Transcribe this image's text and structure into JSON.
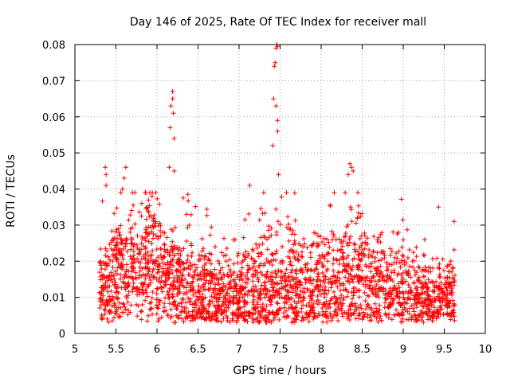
{
  "chart_data": {
    "type": "scatter",
    "title": "Day 146 of 2025, Rate Of TEC Index for receiver mall",
    "xlabel": "GPS time / hours",
    "ylabel": "ROTI / TECUs",
    "xlim": [
      5,
      10
    ],
    "ylim": [
      0,
      0.08
    ],
    "xticks": [
      "5",
      "5.5",
      "6",
      "6.5",
      "7",
      "7.5",
      "8",
      "8.5",
      "9",
      "9.5",
      "10"
    ],
    "yticks": [
      "0",
      "0.01",
      "0.02",
      "0.03",
      "0.04",
      "0.05",
      "0.06",
      "0.07",
      "0.08"
    ],
    "grid": true,
    "marker": "plus",
    "color": "#ff0000",
    "x_range_of_data": [
      5.3,
      9.63
    ],
    "notable_points": [
      {
        "x": 5.37,
        "y": 0.046
      },
      {
        "x": 5.38,
        "y": 0.044
      },
      {
        "x": 5.38,
        "y": 0.041
      },
      {
        "x": 5.62,
        "y": 0.046
      },
      {
        "x": 5.6,
        "y": 0.043
      },
      {
        "x": 5.58,
        "y": 0.04
      },
      {
        "x": 6.17,
        "y": 0.063
      },
      {
        "x": 6.19,
        "y": 0.067
      },
      {
        "x": 6.19,
        "y": 0.065
      },
      {
        "x": 6.2,
        "y": 0.061
      },
      {
        "x": 6.16,
        "y": 0.057
      },
      {
        "x": 6.21,
        "y": 0.054
      },
      {
        "x": 6.15,
        "y": 0.046
      },
      {
        "x": 6.21,
        "y": 0.045
      },
      {
        "x": 7.13,
        "y": 0.041
      },
      {
        "x": 7.42,
        "y": 0.065
      },
      {
        "x": 7.45,
        "y": 0.063
      },
      {
        "x": 7.43,
        "y": 0.074
      },
      {
        "x": 7.44,
        "y": 0.075
      },
      {
        "x": 7.45,
        "y": 0.079
      },
      {
        "x": 7.46,
        "y": 0.08
      },
      {
        "x": 7.47,
        "y": 0.0795
      },
      {
        "x": 7.47,
        "y": 0.059
      },
      {
        "x": 7.47,
        "y": 0.056
      },
      {
        "x": 7.41,
        "y": 0.052
      },
      {
        "x": 7.48,
        "y": 0.044
      },
      {
        "x": 8.35,
        "y": 0.047
      },
      {
        "x": 8.37,
        "y": 0.046
      },
      {
        "x": 8.39,
        "y": 0.045
      },
      {
        "x": 8.33,
        "y": 0.044
      },
      {
        "x": 9.43,
        "y": 0.035
      },
      {
        "x": 9.62,
        "y": 0.031
      }
    ],
    "density_profile": [
      {
        "x": 5.3,
        "center": 0.012,
        "spread": 0.008
      },
      {
        "x": 5.5,
        "center": 0.015,
        "spread": 0.01
      },
      {
        "x": 5.7,
        "center": 0.017,
        "spread": 0.011
      },
      {
        "x": 5.9,
        "center": 0.019,
        "spread": 0.012
      },
      {
        "x": 6.05,
        "center": 0.018,
        "spread": 0.012
      },
      {
        "x": 6.3,
        "center": 0.012,
        "spread": 0.01
      },
      {
        "x": 6.6,
        "center": 0.01,
        "spread": 0.009
      },
      {
        "x": 6.9,
        "center": 0.009,
        "spread": 0.007
      },
      {
        "x": 7.2,
        "center": 0.012,
        "spread": 0.01
      },
      {
        "x": 7.5,
        "center": 0.014,
        "spread": 0.012
      },
      {
        "x": 7.8,
        "center": 0.012,
        "spread": 0.01
      },
      {
        "x": 8.1,
        "center": 0.013,
        "spread": 0.011
      },
      {
        "x": 8.4,
        "center": 0.016,
        "spread": 0.013
      },
      {
        "x": 8.7,
        "center": 0.013,
        "spread": 0.01
      },
      {
        "x": 9.0,
        "center": 0.011,
        "spread": 0.009
      },
      {
        "x": 9.3,
        "center": 0.009,
        "spread": 0.007
      },
      {
        "x": 9.63,
        "center": 0.01,
        "spread": 0.008
      }
    ]
  }
}
